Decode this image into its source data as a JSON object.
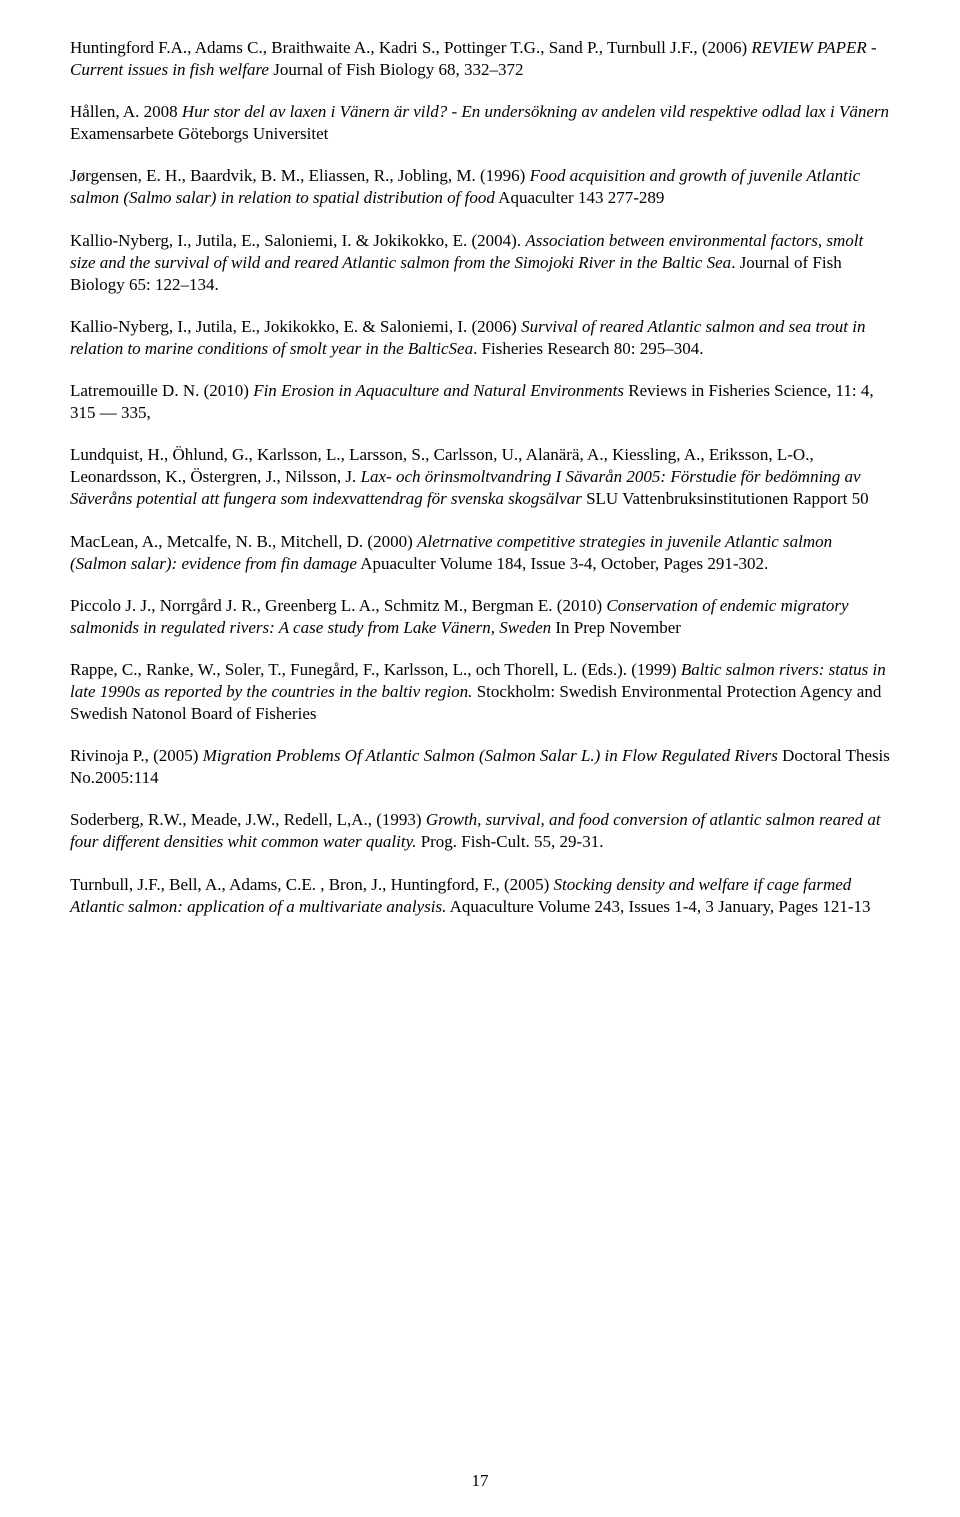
{
  "page": {
    "number": "17"
  },
  "refs": [
    {
      "segments": [
        {
          "t": "Huntingford F.A., Adams C., Braithwaite A., Kadri S., Pottinger T.G., Sand P., Turnbull J.F., (2006) "
        },
        {
          "t": "REVIEW PAPER - Current issues in fish welfare",
          "i": true
        },
        {
          "t": " Journal of Fish Biology 68, 332–372"
        }
      ]
    },
    {
      "segments": [
        {
          "t": "Hållen, A. 2008 "
        },
        {
          "t": "Hur stor del av laxen i Vänern är vild? - En undersökning av andelen vild respektive odlad lax i Vänern",
          "i": true
        },
        {
          "t": " Examensarbete Göteborgs Universitet"
        }
      ]
    },
    {
      "segments": [
        {
          "t": "Jørgensen, E. H., Baardvik, B. M., Eliassen, R., Jobling, M. (1996)  "
        },
        {
          "t": "Food acquisition and growth of juvenile Atlantic salmon (Salmo salar) in relation to spatial distribution of food",
          "i": true
        },
        {
          "t": " Aquaculter 143 277-289"
        }
      ]
    },
    {
      "segments": [
        {
          "t": "Kallio-Nyberg, I., Jutila, E., Saloniemi, I. & Jokikokko, E. (2004). "
        },
        {
          "t": "Association between environmental factors, smolt size and the survival of wild and reared Atlantic salmon from the Simojoki River in the Baltic Sea",
          "i": true
        },
        {
          "t": ". Journal of Fish Biology 65: 122–134."
        }
      ]
    },
    {
      "segments": [
        {
          "t": "Kallio-Nyberg, I., Jutila, E., Jokikokko, E. & Saloniemi, I. (2006) "
        },
        {
          "t": "Survival of reared Atlantic salmon and sea trout in relation to marine conditions of smolt year in the BalticSea",
          "i": true
        },
        {
          "t": ". Fisheries Research 80: 295–304."
        }
      ]
    },
    {
      "segments": [
        {
          "t": "Latremouille D. N. (2010) "
        },
        {
          "t": "Fin Erosion in Aquaculture and Natural Environments",
          "i": true
        },
        {
          "t": " Reviews in Fisheries Science, 11: 4, 315 — 335,"
        }
      ]
    },
    {
      "segments": [
        {
          "t": "Lundquist, H., Öhlund, G., Karlsson, L., Larsson, S., Carlsson, U., Alanärä, A., Kiessling, A., Eriksson, L-O., Leonardsson, K., Östergren, J., Nilsson, J. "
        },
        {
          "t": "Lax- och örinsmoltvandring I Sävarån 2005: Förstudie för bedömning av Säveråns potential att fungera som indexvattendrag för svenska skogsälvar",
          "i": true
        },
        {
          "t": " SLU Vattenbruksinstitutionen Rapport 50"
        }
      ]
    },
    {
      "segments": [
        {
          "t": "MacLean, A., Metcalfe, N. B., Mitchell, D. (2000) "
        },
        {
          "t": "Aletrnative competitive strategies in juvenile Atlantic salmon (Salmon salar): evidence from fin damage",
          "i": true
        },
        {
          "t": " Apuaculter Volume 184, Issue 3-4, October, Pages 291-302."
        }
      ]
    },
    {
      "segments": [
        {
          "t": " Piccolo J. J., Norrgård J. R., Greenberg L. A., Schmitz M., Bergman E. (2010) "
        },
        {
          "t": "Conservation of endemic migratory salmonids in regulated rivers: A case study from Lake Vänern, Sweden",
          "i": true
        },
        {
          "t": " In Prep November"
        }
      ]
    },
    {
      "segments": [
        {
          "t": "Rappe, C., Ranke, W., Soler, T., Funegård, F., Karlsson, L., och Thorell, L. (Eds.). (1999) "
        },
        {
          "t": "Baltic salmon rivers: status in late 1990s as reported by the countries in the baltiv region.",
          "i": true
        },
        {
          "t": " Stockholm: Swedish Environmental Protection Agency and Swedish Natonol Board of Fisheries"
        }
      ]
    },
    {
      "segments": [
        {
          "t": "Rivinoja P., (2005) "
        },
        {
          "t": "Migration Problems Of Atlantic Salmon (Salmon Salar L.) in Flow Regulated Rivers",
          "i": true
        },
        {
          "t": " Doctoral Thesis No.2005:114"
        }
      ]
    },
    {
      "segments": [
        {
          "t": "Soderberg, R.W., Meade, J.W., Redell, L,A., (1993) "
        },
        {
          "t": "Growth, survival, and food conversion of atlantic salmon reared at four different densities whit common water quality.",
          "i": true
        },
        {
          "t": " Prog. Fish-Cult. 55, 29-31."
        }
      ]
    },
    {
      "segments": [
        {
          "t": "Turnbull, J.F., Bell, A., Adams, C.E. , Bron, J., Huntingford, F., (2005) "
        },
        {
          "t": "Stocking density and welfare if cage farmed Atlantic salmon: application of a multivariate analysis.",
          "i": true
        },
        {
          "t": " Aquaculture Volume 243, Issues 1-4, 3 January, Pages 121-13"
        }
      ]
    }
  ]
}
